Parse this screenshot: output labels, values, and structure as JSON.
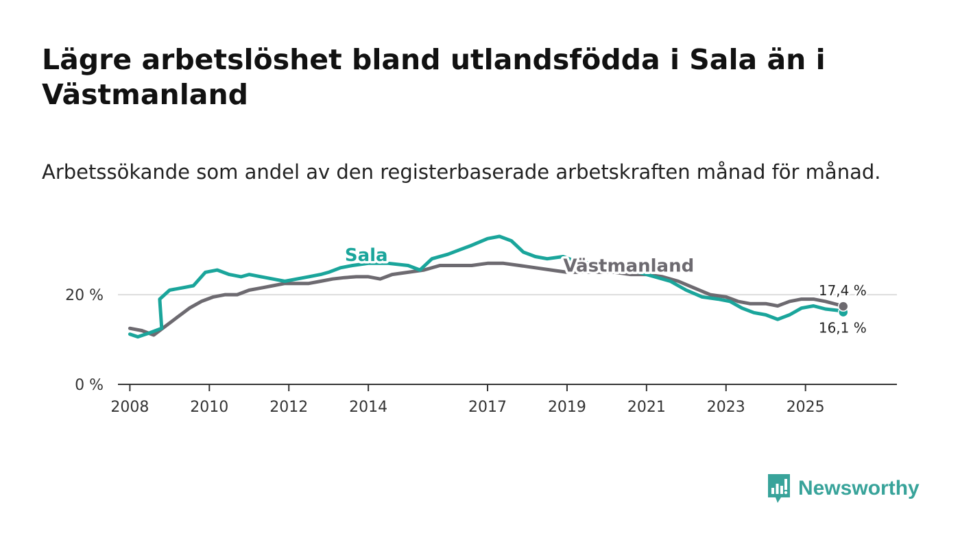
{
  "header": {
    "title": "Lägre arbetslöshet bland utlandsfödda i Sala än i Västmanland",
    "subtitle": "Arbetssökande som andel av den registerbaserade arbetskraften månad för månad."
  },
  "logo": {
    "icon": "bar-chart-speech-bubble-icon",
    "text": "Newsworthy"
  },
  "colors": {
    "sala": "#1aa59b",
    "vastmanland": "#6d6a70",
    "axis": "#333333",
    "grid": "#dddddd",
    "logo": "#38a39a"
  },
  "chart_data": {
    "type": "line",
    "title": "Lägre arbetslöshet bland utlandsfödda i Sala än i Västmanland",
    "subtitle": "Arbetssökande som andel av den registerbaserade arbetskraften månad för månad.",
    "xlim": [
      2007.7,
      2027.3
    ],
    "ylim": [
      0,
      33
    ],
    "xticks": [
      {
        "value": 2008,
        "label": "2008"
      },
      {
        "value": 2010,
        "label": "2010"
      },
      {
        "value": 2012,
        "label": "2012"
      },
      {
        "value": 2014,
        "label": "2014"
      },
      {
        "value": 2017,
        "label": "2017"
      },
      {
        "value": 2019,
        "label": "2019"
      },
      {
        "value": 2021,
        "label": "2021"
      },
      {
        "value": 2023,
        "label": "2023"
      },
      {
        "value": 2025,
        "label": "2025"
      }
    ],
    "yticks": [
      {
        "value": 0,
        "label": "0 %"
      },
      {
        "value": 20,
        "label": "20 %"
      }
    ],
    "series": [
      {
        "name": "Sala",
        "label": "Sala",
        "color": "#1aa59b",
        "label_at": [
          2013.95,
          27.5
        ],
        "end_label": "16,1 %",
        "x": [
          2008.0,
          2008.2,
          2008.5,
          2008.8,
          2008.75,
          2009.0,
          2009.3,
          2009.6,
          2009.9,
          2010.2,
          2010.5,
          2010.8,
          2011.0,
          2011.3,
          2011.6,
          2011.9,
          2012.2,
          2012.5,
          2012.8,
          2013.0,
          2013.3,
          2013.6,
          2014.0,
          2014.5,
          2015.0,
          2015.3,
          2015.6,
          2016.0,
          2016.3,
          2016.6,
          2017.0,
          2017.3,
          2017.6,
          2017.9,
          2018.2,
          2018.5,
          2018.9,
          2019.2,
          2019.6,
          2020.0,
          2020.4,
          2020.8,
          2021.2,
          2021.6,
          2022.0,
          2022.4,
          2022.8,
          2023.1,
          2023.4,
          2023.7,
          2024.0,
          2024.3,
          2024.6,
          2024.9,
          2025.2,
          2025.5,
          2025.8,
          2025.95
        ],
        "y": [
          11.2,
          10.6,
          11.5,
          12.5,
          19.0,
          21.0,
          21.5,
          22.0,
          25.0,
          25.5,
          24.5,
          24.0,
          24.5,
          24.0,
          23.5,
          23.0,
          23.5,
          24.0,
          24.5,
          25.0,
          26.0,
          26.5,
          27.0,
          27.0,
          26.5,
          25.5,
          28.0,
          29.0,
          30.0,
          31.0,
          32.5,
          33.0,
          32.0,
          29.5,
          28.5,
          28.0,
          28.5,
          27.5,
          27.0,
          27.0,
          26.0,
          25.0,
          24.0,
          23.0,
          21.0,
          19.5,
          19.0,
          18.5,
          17.0,
          16.0,
          15.5,
          14.5,
          15.5,
          17.0,
          17.5,
          16.8,
          16.5,
          16.1
        ]
      },
      {
        "name": "Västmanland",
        "label": "Västmanland",
        "color": "#6d6a70",
        "label_at": [
          2020.55,
          25.1
        ],
        "end_label": "17,4 %",
        "x": [
          2008.0,
          2008.3,
          2008.6,
          2008.9,
          2009.2,
          2009.5,
          2009.8,
          2010.1,
          2010.4,
          2010.7,
          2011.0,
          2011.3,
          2011.6,
          2011.9,
          2012.2,
          2012.5,
          2012.8,
          2013.1,
          2013.4,
          2013.7,
          2014.0,
          2014.3,
          2014.6,
          2015.0,
          2015.4,
          2015.8,
          2016.2,
          2016.6,
          2017.0,
          2017.4,
          2017.8,
          2018.2,
          2018.6,
          2019.0,
          2019.4,
          2019.8,
          2020.2,
          2020.6,
          2021.0,
          2021.4,
          2021.8,
          2022.2,
          2022.6,
          2023.0,
          2023.3,
          2023.6,
          2024.0,
          2024.3,
          2024.6,
          2024.9,
          2025.2,
          2025.5,
          2025.8,
          2025.95
        ],
        "y": [
          12.5,
          12.0,
          11.0,
          13.0,
          15.0,
          17.0,
          18.5,
          19.5,
          20.0,
          20.0,
          21.0,
          21.5,
          22.0,
          22.5,
          22.5,
          22.5,
          23.0,
          23.5,
          23.8,
          24.0,
          24.0,
          23.5,
          24.5,
          25.0,
          25.5,
          26.5,
          26.5,
          26.5,
          27.0,
          27.0,
          26.5,
          26.0,
          25.5,
          25.0,
          25.0,
          25.0,
          25.0,
          24.5,
          24.5,
          24.0,
          23.0,
          21.5,
          20.0,
          19.5,
          18.5,
          18.0,
          18.0,
          17.5,
          18.5,
          19.0,
          19.0,
          18.5,
          17.8,
          17.4
        ]
      }
    ]
  }
}
